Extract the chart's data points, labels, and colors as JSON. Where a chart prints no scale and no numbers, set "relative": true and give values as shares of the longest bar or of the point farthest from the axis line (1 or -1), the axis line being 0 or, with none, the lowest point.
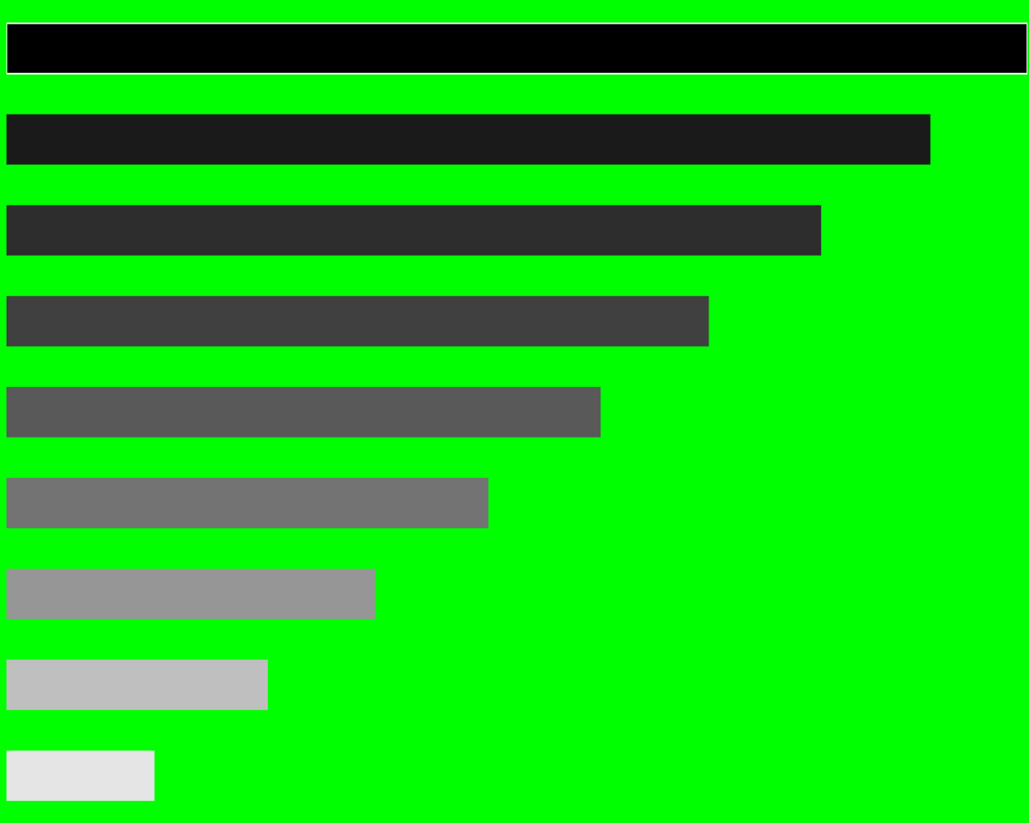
{
  "chart_data": {
    "type": "bar",
    "orientation": "horizontal",
    "relative": true,
    "categories": [
      null,
      null,
      null,
      null,
      null,
      null,
      null,
      null,
      null
    ],
    "values": [
      1,
      0.905,
      0.798,
      0.688,
      0.582,
      0.472,
      0.361,
      0.256,
      0.145
    ],
    "colors": [
      "#000000",
      "#1a1a1a",
      "#2d2d2d",
      "#404040",
      "#595959",
      "#737373",
      "#969696",
      "#bfbfbf",
      "#e5e5e5"
    ]
  }
}
